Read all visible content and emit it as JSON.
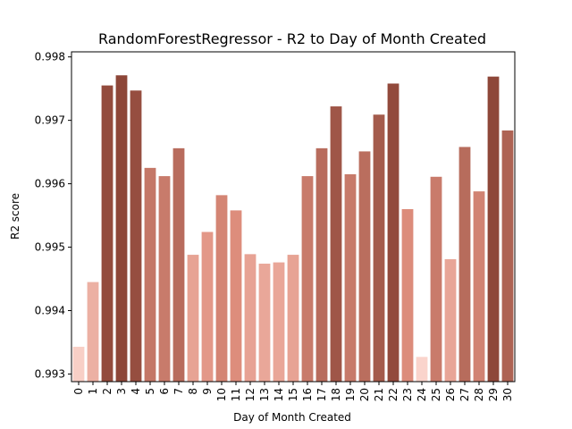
{
  "chart_data": {
    "type": "bar",
    "title": "RandomForestRegressor - R2 to Day of Month Created",
    "xlabel": "Day of Month Created",
    "ylabel": "R2 score",
    "categories": [
      "0",
      "1",
      "2",
      "3",
      "4",
      "5",
      "6",
      "7",
      "8",
      "9",
      "10",
      "11",
      "12",
      "13",
      "14",
      "15",
      "16",
      "17",
      "18",
      "19",
      "20",
      "21",
      "22",
      "23",
      "24",
      "25",
      "26",
      "27",
      "28",
      "29",
      "30"
    ],
    "values": [
      0.99343,
      0.99445,
      0.99755,
      0.99771,
      0.99747,
      0.99625,
      0.99612,
      0.99656,
      0.99488,
      0.99524,
      0.99582,
      0.99558,
      0.99489,
      0.99474,
      0.99476,
      0.99488,
      0.99612,
      0.99656,
      0.99722,
      0.99615,
      0.99651,
      0.99709,
      0.99758,
      0.9956,
      0.99327,
      0.99611,
      0.99481,
      0.99658,
      0.99588,
      0.99769,
      0.99684
    ],
    "ylim": [
      0.99288,
      0.99808
    ],
    "yticks": [
      "0.993",
      "0.994",
      "0.995",
      "0.996",
      "0.997",
      "0.998"
    ],
    "colors": {
      "low": "#fad4cc",
      "mid": "#e0907f",
      "high": "#8d4638"
    },
    "grid": false
  }
}
